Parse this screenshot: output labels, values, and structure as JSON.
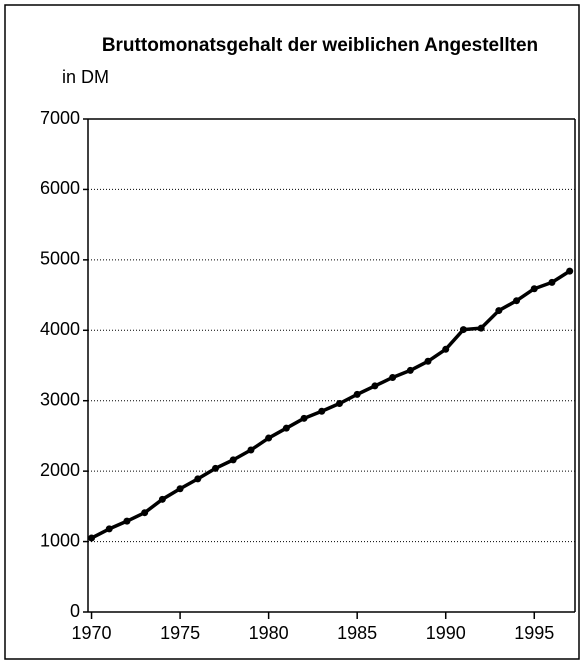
{
  "chart_data": {
    "type": "line",
    "title": "Bruttomonatsgehalt der weiblichen Angestellten",
    "subtitle": "in DM",
    "x": [
      1970,
      1971,
      1972,
      1973,
      1974,
      1975,
      1976,
      1977,
      1978,
      1979,
      1980,
      1981,
      1982,
      1983,
      1984,
      1985,
      1986,
      1987,
      1988,
      1989,
      1990,
      1991,
      1992,
      1993,
      1994,
      1995,
      1996,
      1997
    ],
    "values": [
      1050,
      1180,
      1290,
      1410,
      1600,
      1750,
      1890,
      2040,
      2160,
      2300,
      2470,
      2610,
      2750,
      2850,
      2960,
      3090,
      3210,
      3330,
      3430,
      3560,
      3730,
      4010,
      4030,
      4280,
      4420,
      4590,
      4680,
      4840
    ],
    "color": "#000000",
    "xlim": [
      1969.8,
      1997.3
    ],
    "xticks": [
      1970,
      1975,
      1980,
      1985,
      1990,
      1995
    ],
    "ylim": [
      0,
      7000
    ],
    "yticks": [
      0,
      1000,
      2000,
      3000,
      4000,
      5000,
      6000,
      7000
    ],
    "grid": true
  }
}
